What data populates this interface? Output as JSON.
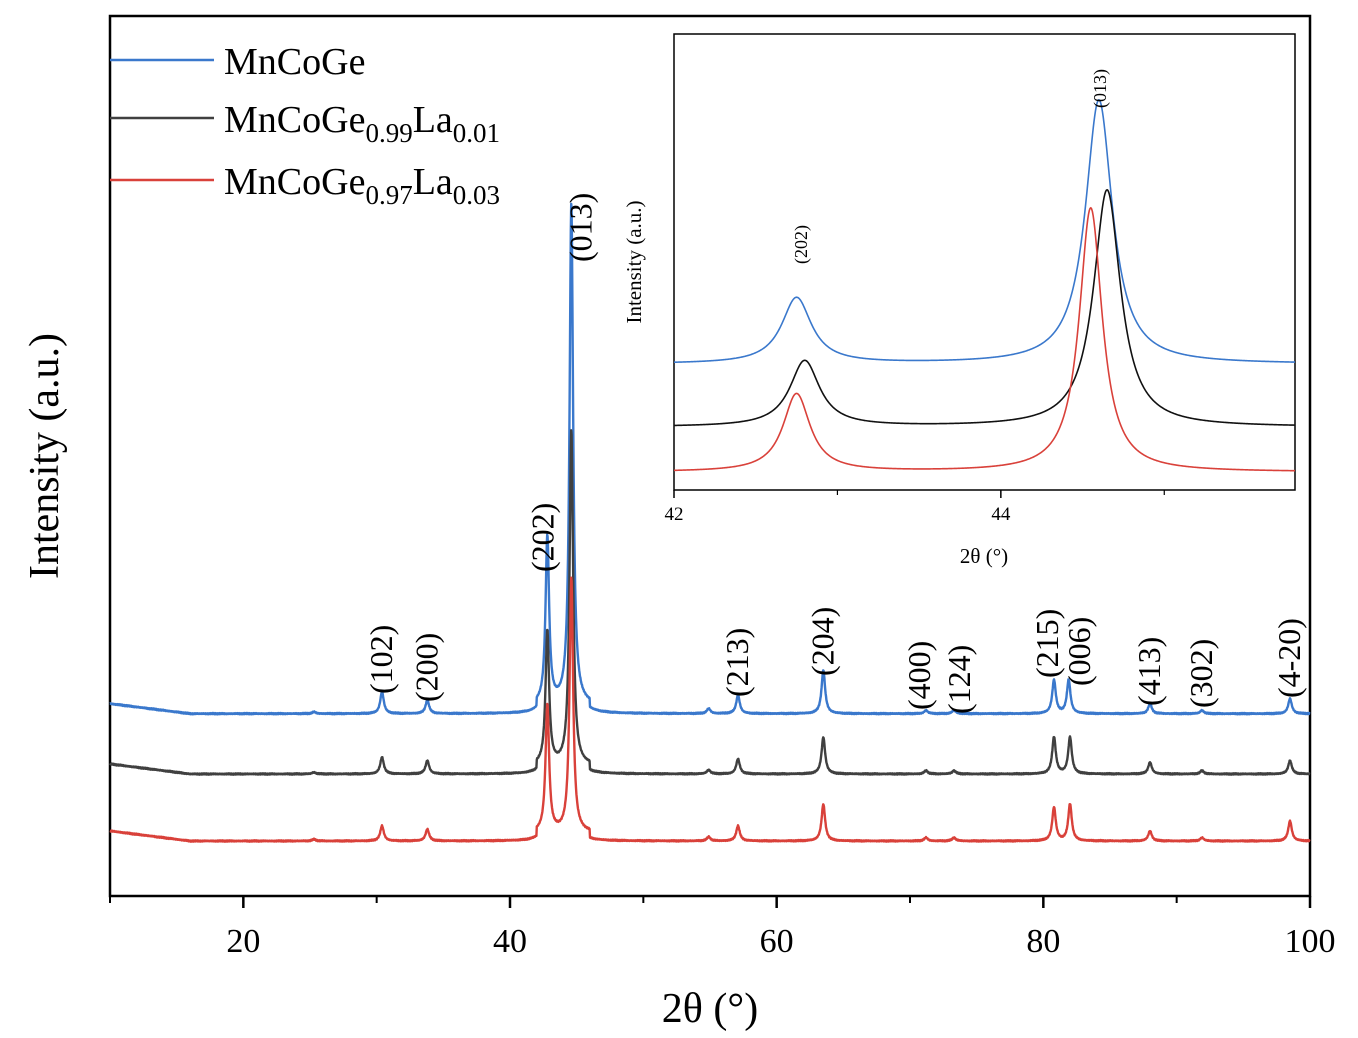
{
  "chart_data": [
    {
      "type": "line",
      "title": "",
      "xlabel": "2θ (°)",
      "ylabel": "Intensity (a.u.)",
      "xlim": [
        10,
        100
      ],
      "xticks": [
        20,
        40,
        60,
        80,
        100
      ],
      "xtick_labels": [
        "20",
        "40",
        "60",
        "80",
        "100"
      ],
      "yticks": [],
      "grid": false,
      "legend": {
        "position": "top-left",
        "entries": [
          {
            "series": 0,
            "base": "MnCoGe",
            "sub1": "",
            "mid": "",
            "sub2": ""
          },
          {
            "series": 1,
            "base": "MnCoGe",
            "sub1": "0.99",
            "mid": "La",
            "sub2": "0.01"
          },
          {
            "series": 2,
            "base": "MnCoGe",
            "sub1": "0.97",
            "mid": "La",
            "sub2": "0.03"
          }
        ]
      },
      "series": [
        {
          "name": "MnCoGe",
          "color": "#3a78cc",
          "offset": 1.8,
          "peaks": [
            [
              25.3,
              0.05
            ],
            [
              30.4,
              0.65
            ],
            [
              33.8,
              0.4
            ],
            [
              42.8,
              5.0
            ],
            [
              44.6,
              15.0
            ],
            [
              54.9,
              0.15
            ],
            [
              57.1,
              0.55
            ],
            [
              63.5,
              1.3
            ],
            [
              71.2,
              0.1
            ],
            [
              73.3,
              0.1
            ],
            [
              80.8,
              1.0
            ],
            [
              81.9,
              1.0
            ],
            [
              88.0,
              0.3
            ],
            [
              91.9,
              0.1
            ],
            [
              98.5,
              0.45
            ]
          ]
        },
        {
          "name": "MnCoGe0.99La0.01",
          "color": "#404040",
          "offset": 0.0,
          "peaks": [
            [
              25.3,
              0.05
            ],
            [
              30.4,
              0.5
            ],
            [
              33.8,
              0.4
            ],
            [
              42.8,
              4.0
            ],
            [
              44.6,
              10.0
            ],
            [
              54.9,
              0.12
            ],
            [
              57.1,
              0.45
            ],
            [
              63.5,
              1.1
            ],
            [
              71.2,
              0.1
            ],
            [
              73.3,
              0.1
            ],
            [
              80.8,
              1.1
            ],
            [
              82.0,
              1.1
            ],
            [
              88.0,
              0.35
            ],
            [
              91.9,
              0.1
            ],
            [
              98.5,
              0.4
            ]
          ]
        },
        {
          "name": "MnCoGe0.97La0.03",
          "color": "#d9413a",
          "offset": -2.0,
          "peaks": [
            [
              25.3,
              0.05
            ],
            [
              30.4,
              0.45
            ],
            [
              33.8,
              0.35
            ],
            [
              42.8,
              3.8
            ],
            [
              44.6,
              7.6
            ],
            [
              54.9,
              0.12
            ],
            [
              57.1,
              0.45
            ],
            [
              63.5,
              1.1
            ],
            [
              71.2,
              0.1
            ],
            [
              73.3,
              0.1
            ],
            [
              80.8,
              1.0
            ],
            [
              82.0,
              1.1
            ],
            [
              88.0,
              0.3
            ],
            [
              91.9,
              0.1
            ],
            [
              98.5,
              0.6
            ]
          ]
        }
      ],
      "annotations": [
        {
          "text": "(102)",
          "x": 30.4
        },
        {
          "text": "(200)",
          "x": 33.8
        },
        {
          "text": "(202)",
          "x": 42.8
        },
        {
          "text": "(013)",
          "x": 44.6
        },
        {
          "text": "(213)",
          "x": 57.1
        },
        {
          "text": "(204)",
          "x": 63.5
        },
        {
          "text": "(400)",
          "x": 71.2
        },
        {
          "text": "(124)",
          "x": 73.3
        },
        {
          "text": "(215)",
          "x": 80.8
        },
        {
          "text": "(006)",
          "x": 82.0
        },
        {
          "text": "(413)",
          "x": 88.0
        },
        {
          "text": "(302)",
          "x": 91.9
        },
        {
          "text": "(4-20)",
          "x": 98.5
        }
      ]
    },
    {
      "type": "line",
      "title": "",
      "xlabel": "2θ (°)",
      "ylabel": "Intensity (a.u.)",
      "xlim": [
        42,
        45.8
      ],
      "xticks": [
        42,
        44
      ],
      "xtick_labels": [
        "42",
        "44"
      ],
      "minor_xticks": [
        43,
        45
      ],
      "yticks": [],
      "grid": false,
      "series": [
        {
          "name": "MnCoGe",
          "color": "#3a78cc",
          "offset": 3.6,
          "peaks": [
            [
              42.75,
              2.2,
              0.11
            ],
            [
              44.6,
              8.8,
              0.1
            ]
          ]
        },
        {
          "name": "MnCoGe0.99La0.01",
          "color": "#111111",
          "offset": 1.5,
          "peaks": [
            [
              42.8,
              2.2,
              0.11
            ],
            [
              44.65,
              7.9,
              0.1
            ]
          ]
        },
        {
          "name": "MnCoGe0.97La0.03",
          "color": "#d9413a",
          "offset": 0.0,
          "peaks": [
            [
              42.75,
              2.6,
              0.1
            ],
            [
              44.55,
              8.8,
              0.085
            ]
          ]
        }
      ],
      "annotations": [
        {
          "text": "(202)",
          "x": 42.77
        },
        {
          "text": "(013)",
          "x": 44.6
        }
      ]
    }
  ]
}
